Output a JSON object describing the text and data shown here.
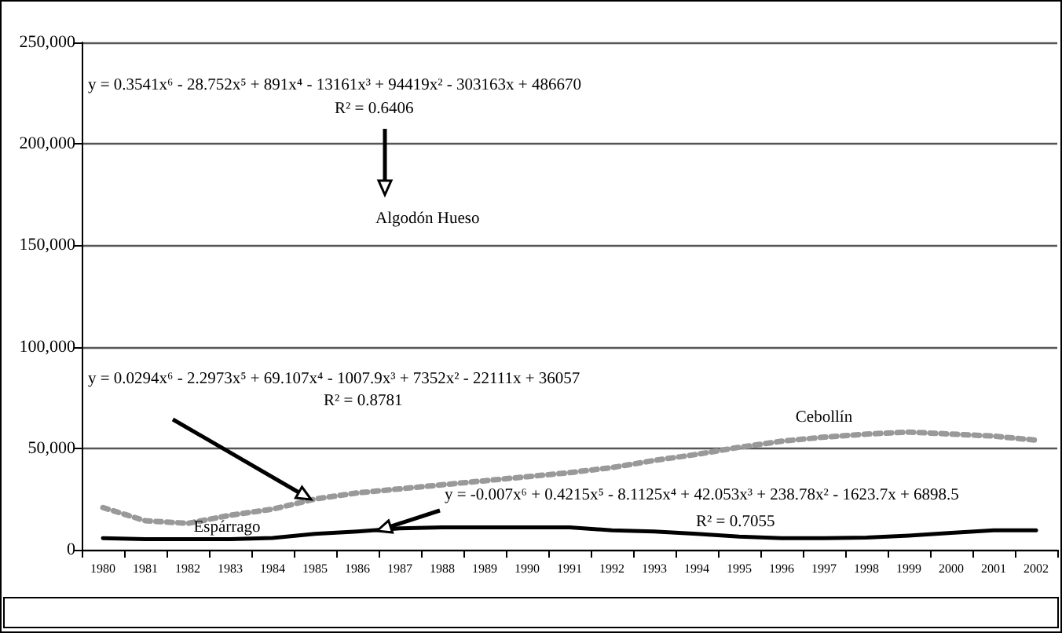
{
  "chart_data": {
    "type": "line",
    "categories": [
      "1980",
      "1981",
      "1982",
      "1983",
      "1984",
      "1985",
      "1986",
      "1987",
      "1988",
      "1989",
      "1990",
      "1991",
      "1992",
      "1993",
      "1994",
      "1995",
      "1996",
      "1997",
      "1998",
      "1999",
      "2000",
      "2001",
      "2002"
    ],
    "series": [
      {
        "name": "Cebollín",
        "color": "#999999",
        "line_style": "dotted",
        "values": [
          20800,
          14300,
          13000,
          17000,
          20000,
          25000,
          28000,
          30000,
          32000,
          34000,
          36000,
          38000,
          40500,
          44000,
          47000,
          50500,
          53500,
          55500,
          57000,
          58000,
          57000,
          56000,
          54000
        ]
      },
      {
        "name": "Espárrago",
        "color": "#000000",
        "line_style": "solid",
        "values": [
          5700,
          5200,
          5200,
          5200,
          5800,
          7800,
          9000,
          10500,
          11000,
          11000,
          11000,
          11000,
          9600,
          9000,
          7800,
          6500,
          5700,
          5700,
          6000,
          7000,
          8300,
          9600,
          9600
        ]
      }
    ],
    "ylim": [
      0,
      250000
    ],
    "yticks": [
      0,
      {
        "value": 50000,
        "label": "50,000"
      },
      {
        "value": 100000,
        "label": "100,000"
      },
      {
        "value": 150000,
        "label": "150,000"
      },
      {
        "value": 200000,
        "label": "200,000"
      },
      {
        "value": 250000,
        "label": "250,000"
      }
    ],
    "grid": "y",
    "legend": false,
    "marker": "none",
    "annotations": [
      "y = 0.3541x⁶ - 28.752x⁵ + 891x⁴ - 13161x³ + 94419x² - 303163x + 486670",
      "R² = 0.6406",
      "Algodón Hueso",
      "y = 0.0294x⁶ - 2.2973x⁵ + 69.107x⁴ - 1007.9x³ + 7352x² - 22111x + 36057",
      "R² = 0.8781",
      "y = -0.007x⁶ + 0.4215x⁵ - 8.1125x⁴ + 42.053x³ + 238.78x² - 1623.7x + 6898.5",
      "R² = 0.7055"
    ]
  }
}
